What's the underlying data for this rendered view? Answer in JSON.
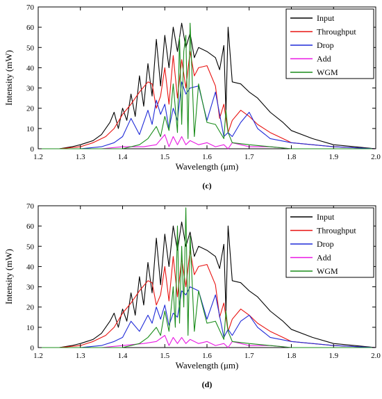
{
  "chart_data": [
    {
      "type": "line",
      "panel_label": "(c)",
      "xlabel": "Wavelength (μm)",
      "ylabel": "Intensity (mW)",
      "xlim": [
        1.2,
        2.0
      ],
      "ylim": [
        0,
        70
      ],
      "x_ticks": [
        1.2,
        1.3,
        1.4,
        1.5,
        1.6,
        1.7,
        1.8,
        1.9,
        2.0
      ],
      "x_tick_labels": [
        "1.2",
        "1.3",
        "1.4",
        "1.5",
        "1.6",
        "1.7",
        "1.8",
        "1.9",
        "2.0"
      ],
      "y_ticks": [
        0,
        10,
        20,
        30,
        40,
        50,
        60,
        70
      ],
      "y_tick_labels": [
        "0",
        "10",
        "20",
        "30",
        "40",
        "50",
        "60",
        "70"
      ],
      "grid": false,
      "legend_position": "top-right",
      "series": [
        {
          "name": "Input",
          "color": "#000000",
          "x": [
            1.2,
            1.25,
            1.28,
            1.3,
            1.33,
            1.35,
            1.37,
            1.38,
            1.39,
            1.4,
            1.41,
            1.42,
            1.43,
            1.44,
            1.45,
            1.46,
            1.47,
            1.48,
            1.49,
            1.5,
            1.51,
            1.52,
            1.53,
            1.54,
            1.55,
            1.56,
            1.57,
            1.58,
            1.6,
            1.62,
            1.63,
            1.64,
            1.645,
            1.65,
            1.66,
            1.68,
            1.7,
            1.72,
            1.75,
            1.78,
            1.8,
            1.85,
            1.9,
            1.95,
            2.0
          ],
          "y": [
            0,
            0,
            1,
            2,
            4,
            7,
            13,
            18,
            10,
            20,
            14,
            27,
            16,
            36,
            21,
            42,
            26,
            54,
            31,
            56,
            40,
            60,
            48,
            62,
            50,
            57,
            45,
            50,
            48,
            45,
            39,
            51,
            18,
            60,
            33,
            32,
            28,
            25,
            18,
            13,
            9,
            5,
            2,
            1,
            0
          ]
        },
        {
          "name": "Throughput",
          "color": "#e8110f",
          "x": [
            1.2,
            1.25,
            1.3,
            1.33,
            1.36,
            1.38,
            1.4,
            1.42,
            1.44,
            1.46,
            1.47,
            1.48,
            1.49,
            1.5,
            1.51,
            1.52,
            1.53,
            1.54,
            1.55,
            1.56,
            1.57,
            1.58,
            1.6,
            1.62,
            1.63,
            1.64,
            1.65,
            1.66,
            1.68,
            1.7,
            1.72,
            1.75,
            1.78,
            1.8,
            1.85,
            1.9,
            2.0
          ],
          "y": [
            0,
            0,
            1,
            3,
            6,
            10,
            17,
            22,
            28,
            33,
            32,
            20,
            26,
            40,
            22,
            46,
            25,
            44,
            30,
            48,
            36,
            40,
            41,
            31,
            15,
            22,
            8,
            14,
            19,
            16,
            12,
            8,
            5,
            3,
            2,
            1,
            0
          ]
        },
        {
          "name": "Drop",
          "color": "#1f2ad8",
          "x": [
            1.2,
            1.3,
            1.35,
            1.38,
            1.4,
            1.42,
            1.44,
            1.46,
            1.47,
            1.48,
            1.49,
            1.5,
            1.51,
            1.52,
            1.53,
            1.54,
            1.55,
            1.56,
            1.58,
            1.6,
            1.62,
            1.64,
            1.65,
            1.66,
            1.68,
            1.7,
            1.72,
            1.75,
            1.8,
            1.85,
            1.9,
            2.0
          ],
          "y": [
            0,
            0,
            1,
            3,
            6,
            15,
            7,
            19,
            12,
            24,
            17,
            22,
            10,
            20,
            14,
            33,
            27,
            30,
            31,
            14,
            28,
            6,
            8,
            6,
            13,
            18,
            10,
            5,
            3,
            2,
            1,
            0
          ]
        },
        {
          "name": "Add",
          "color": "#e916e3",
          "x": [
            1.2,
            1.35,
            1.4,
            1.45,
            1.48,
            1.5,
            1.51,
            1.52,
            1.53,
            1.54,
            1.55,
            1.56,
            1.58,
            1.6,
            1.62,
            1.64,
            1.65,
            1.66,
            1.7,
            1.75,
            1.8,
            1.9,
            2.0
          ],
          "y": [
            0,
            0,
            1,
            1,
            2,
            7,
            1,
            6,
            2,
            6,
            2,
            4,
            2,
            3,
            1,
            2,
            0,
            3,
            1,
            1,
            0,
            0,
            0
          ]
        },
        {
          "name": "WGM",
          "color": "#198c19",
          "x": [
            1.2,
            1.4,
            1.44,
            1.46,
            1.48,
            1.49,
            1.5,
            1.51,
            1.52,
            1.53,
            1.535,
            1.54,
            1.545,
            1.55,
            1.555,
            1.56,
            1.57,
            1.58,
            1.6,
            1.62,
            1.64,
            1.645,
            1.65,
            1.66,
            1.7,
            1.75,
            1.8,
            1.85,
            2.0
          ],
          "y": [
            0,
            0,
            2,
            5,
            11,
            6,
            16,
            9,
            32,
            8,
            55,
            12,
            48,
            56,
            5,
            62,
            6,
            32,
            13,
            12,
            5,
            19,
            8,
            3,
            2,
            1,
            0,
            0,
            0
          ]
        }
      ]
    },
    {
      "type": "line",
      "panel_label": "(d)",
      "xlabel": "Wavelength (μm)",
      "ylabel": "Intensity (mW)",
      "xlim": [
        1.2,
        2.0
      ],
      "ylim": [
        0,
        70
      ],
      "x_ticks": [
        1.2,
        1.3,
        1.4,
        1.5,
        1.6,
        1.7,
        1.8,
        1.9,
        2.0
      ],
      "x_tick_labels": [
        "1.2",
        "1.3",
        "1.4",
        "1.5",
        "1.6",
        "1.7",
        "1.8",
        "1.9",
        "2.0"
      ],
      "y_ticks": [
        0,
        10,
        20,
        30,
        40,
        50,
        60,
        70
      ],
      "y_tick_labels": [
        "0",
        "10",
        "20",
        "30",
        "40",
        "50",
        "60",
        "70"
      ],
      "grid": false,
      "legend_position": "top-right",
      "series": [
        {
          "name": "Input",
          "color": "#000000",
          "x": [
            1.2,
            1.25,
            1.28,
            1.3,
            1.33,
            1.35,
            1.37,
            1.38,
            1.39,
            1.4,
            1.41,
            1.42,
            1.43,
            1.44,
            1.45,
            1.46,
            1.47,
            1.48,
            1.49,
            1.5,
            1.51,
            1.52,
            1.53,
            1.54,
            1.55,
            1.56,
            1.57,
            1.58,
            1.6,
            1.62,
            1.63,
            1.64,
            1.645,
            1.65,
            1.66,
            1.68,
            1.7,
            1.72,
            1.75,
            1.78,
            1.8,
            1.85,
            1.9,
            1.95,
            2.0
          ],
          "y": [
            0,
            0,
            1,
            2,
            4,
            7,
            13,
            17,
            10,
            19,
            13,
            27,
            16,
            35,
            21,
            42,
            27,
            54,
            31,
            56,
            40,
            60,
            48,
            62,
            50,
            57,
            45,
            50,
            48,
            45,
            39,
            51,
            18,
            60,
            33,
            32,
            28,
            25,
            18,
            13,
            9,
            5,
            2,
            1,
            0
          ]
        },
        {
          "name": "Throughput",
          "color": "#e8110f",
          "x": [
            1.2,
            1.25,
            1.3,
            1.33,
            1.36,
            1.38,
            1.4,
            1.42,
            1.44,
            1.46,
            1.47,
            1.48,
            1.49,
            1.5,
            1.51,
            1.52,
            1.53,
            1.54,
            1.55,
            1.56,
            1.57,
            1.58,
            1.6,
            1.62,
            1.63,
            1.64,
            1.65,
            1.66,
            1.68,
            1.7,
            1.72,
            1.75,
            1.78,
            1.8,
            1.85,
            1.9,
            2.0
          ],
          "y": [
            0,
            0,
            1,
            3,
            6,
            10,
            17,
            22,
            28,
            33,
            32,
            21,
            26,
            40,
            23,
            45,
            25,
            44,
            30,
            48,
            36,
            40,
            41,
            31,
            15,
            22,
            8,
            14,
            19,
            16,
            12,
            8,
            5,
            3,
            2,
            1,
            0
          ]
        },
        {
          "name": "Drop",
          "color": "#1f2ad8",
          "x": [
            1.2,
            1.3,
            1.35,
            1.38,
            1.4,
            1.42,
            1.44,
            1.46,
            1.47,
            1.48,
            1.49,
            1.5,
            1.51,
            1.52,
            1.53,
            1.54,
            1.55,
            1.56,
            1.58,
            1.6,
            1.62,
            1.64,
            1.65,
            1.66,
            1.68,
            1.7,
            1.72,
            1.75,
            1.8,
            1.85,
            1.9,
            2.0
          ],
          "y": [
            0,
            0,
            1,
            3,
            5,
            13,
            8,
            16,
            12,
            20,
            14,
            21,
            11,
            17,
            15,
            28,
            26,
            30,
            28,
            14,
            26,
            5,
            9,
            6,
            13,
            16,
            10,
            5,
            3,
            2,
            1,
            0
          ]
        },
        {
          "name": "Add",
          "color": "#e916e3",
          "x": [
            1.2,
            1.35,
            1.4,
            1.45,
            1.48,
            1.5,
            1.51,
            1.52,
            1.53,
            1.54,
            1.55,
            1.56,
            1.58,
            1.6,
            1.62,
            1.64,
            1.65,
            1.66,
            1.7,
            1.75,
            1.8,
            1.9,
            2.0
          ],
          "y": [
            0,
            0,
            1,
            2,
            3,
            6,
            1,
            5,
            2,
            5,
            2,
            4,
            2,
            3,
            1,
            2,
            0,
            3,
            1,
            1,
            0,
            0,
            0
          ]
        },
        {
          "name": "WGM",
          "color": "#198c19",
          "x": [
            1.2,
            1.4,
            1.44,
            1.46,
            1.48,
            1.49,
            1.5,
            1.51,
            1.52,
            1.525,
            1.53,
            1.535,
            1.54,
            1.545,
            1.55,
            1.555,
            1.56,
            1.57,
            1.58,
            1.6,
            1.62,
            1.64,
            1.645,
            1.65,
            1.66,
            1.7,
            1.75,
            1.8,
            1.85,
            2.0
          ],
          "y": [
            0,
            0,
            2,
            5,
            10,
            6,
            18,
            8,
            30,
            10,
            60,
            12,
            50,
            20,
            69,
            6,
            55,
            8,
            28,
            12,
            13,
            4,
            18,
            8,
            3,
            2,
            1,
            0,
            0,
            0
          ]
        }
      ]
    }
  ]
}
